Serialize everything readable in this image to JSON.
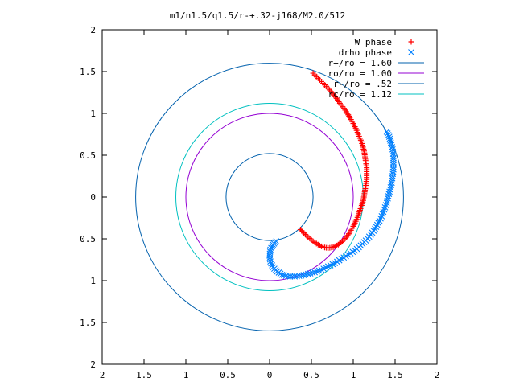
{
  "chart_data": {
    "type": "scatter",
    "title": "m1/n1.5/q1.5/r-+.32-j168/M2.0/512",
    "xlabel": "",
    "ylabel": "",
    "xlim": [
      -2,
      2
    ],
    "ylim": [
      -2,
      2
    ],
    "x_ticks": [
      -2,
      -1.5,
      -1,
      -0.5,
      0,
      0.5,
      1,
      1.5,
      2
    ],
    "y_ticks": [
      -2,
      -1.5,
      -1,
      -0.5,
      0,
      0.5,
      1,
      1.5,
      2
    ],
    "x_tick_labels": [
      "2",
      "1.5",
      "1",
      "0.5",
      "0",
      "0.5",
      "1",
      "1.5",
      "2"
    ],
    "y_tick_labels": [
      "2",
      "1.5",
      "1",
      "0.5",
      "0",
      "0.5",
      "1",
      "1.5",
      "2"
    ],
    "grid": false,
    "legend_position": "top-right",
    "series": [
      {
        "name": "W phase",
        "kind": "points",
        "marker": "plus",
        "color": "#ff0000",
        "points": [
          [
            0.52,
            1.48
          ],
          [
            0.58,
            1.42
          ],
          [
            0.64,
            1.36
          ],
          [
            0.7,
            1.3
          ],
          [
            0.75,
            1.24
          ],
          [
            0.8,
            1.18
          ],
          [
            0.84,
            1.12
          ],
          [
            0.89,
            1.06
          ],
          [
            0.93,
            1.0
          ],
          [
            0.96,
            0.95
          ],
          [
            1.0,
            0.88
          ],
          [
            1.03,
            0.82
          ],
          [
            1.06,
            0.75
          ],
          [
            1.09,
            0.68
          ],
          [
            1.11,
            0.62
          ],
          [
            1.13,
            0.55
          ],
          [
            1.14,
            0.48
          ],
          [
            1.15,
            0.42
          ],
          [
            1.16,
            0.35
          ],
          [
            1.16,
            0.28
          ],
          [
            1.16,
            0.21
          ],
          [
            1.15,
            0.14
          ],
          [
            1.14,
            0.08
          ],
          [
            1.13,
            0.02
          ],
          [
            1.12,
            -0.04
          ],
          [
            1.1,
            -0.1
          ],
          [
            1.08,
            -0.16
          ],
          [
            1.06,
            -0.22
          ],
          [
            1.03,
            -0.29
          ],
          [
            1.0,
            -0.35
          ],
          [
            0.96,
            -0.42
          ],
          [
            0.92,
            -0.48
          ],
          [
            0.87,
            -0.53
          ],
          [
            0.82,
            -0.57
          ],
          [
            0.76,
            -0.6
          ],
          [
            0.7,
            -0.61
          ],
          [
            0.64,
            -0.6
          ],
          [
            0.58,
            -0.57
          ],
          [
            0.52,
            -0.53
          ],
          [
            0.46,
            -0.48
          ],
          [
            0.41,
            -0.43
          ],
          [
            0.37,
            -0.39
          ]
        ]
      },
      {
        "name": "drho phase",
        "kind": "points",
        "marker": "cross",
        "color": "#0080ff",
        "points": [
          [
            1.4,
            0.78
          ],
          [
            1.43,
            0.72
          ],
          [
            1.45,
            0.65
          ],
          [
            1.47,
            0.57
          ],
          [
            1.48,
            0.49
          ],
          [
            1.48,
            0.41
          ],
          [
            1.48,
            0.33
          ],
          [
            1.47,
            0.25
          ],
          [
            1.46,
            0.17
          ],
          [
            1.44,
            0.09
          ],
          [
            1.42,
            0.01
          ],
          [
            1.4,
            -0.07
          ],
          [
            1.37,
            -0.15
          ],
          [
            1.34,
            -0.23
          ],
          [
            1.3,
            -0.31
          ],
          [
            1.26,
            -0.38
          ],
          [
            1.21,
            -0.45
          ],
          [
            1.15,
            -0.52
          ],
          [
            1.09,
            -0.58
          ],
          [
            1.02,
            -0.64
          ],
          [
            0.94,
            -0.69
          ],
          [
            0.86,
            -0.74
          ],
          [
            0.78,
            -0.79
          ],
          [
            0.7,
            -0.83
          ],
          [
            0.62,
            -0.87
          ],
          [
            0.54,
            -0.9
          ],
          [
            0.46,
            -0.92
          ],
          [
            0.38,
            -0.94
          ],
          [
            0.3,
            -0.95
          ],
          [
            0.22,
            -0.95
          ],
          [
            0.15,
            -0.93
          ],
          [
            0.09,
            -0.89
          ],
          [
            0.04,
            -0.84
          ],
          [
            0.01,
            -0.77
          ],
          [
            0.0,
            -0.7
          ],
          [
            0.01,
            -0.63
          ],
          [
            0.04,
            -0.57
          ],
          [
            0.08,
            -0.53
          ]
        ]
      },
      {
        "name": "r+/ro = 1.60",
        "kind": "circle",
        "r": 1.6,
        "color": "#0060ad"
      },
      {
        "name": "ro/ro = 1.00",
        "kind": "circle",
        "r": 1.0,
        "color": "#9400d3"
      },
      {
        "name": "r-/ro = .52",
        "kind": "circle",
        "r": 0.52,
        "color": "#0060ad"
      },
      {
        "name": "rc/ro = 1.12",
        "kind": "circle",
        "r": 1.12,
        "color": "#00c0c0"
      }
    ]
  }
}
